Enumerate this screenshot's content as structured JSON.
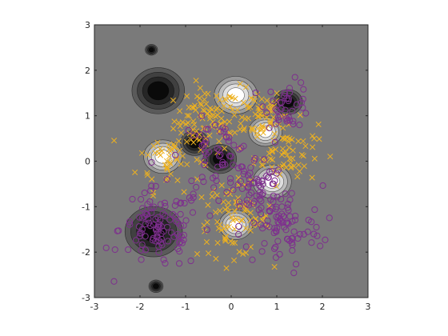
{
  "chart_data": {
    "type": "scatter",
    "title": "",
    "xlabel": "",
    "ylabel": "",
    "xlim": [
      -3,
      3
    ],
    "ylim": [
      -3,
      3
    ],
    "xticks": [
      "-3",
      "-2",
      "-1",
      "0",
      "1",
      "2",
      "3"
    ],
    "yticks": [
      "-3",
      "-2",
      "-1",
      "0",
      "1",
      "2",
      "3"
    ],
    "grid": false,
    "legend": "none",
    "background_color": "#7a7a7a",
    "contour_fill": "grayscale (black low, white high)",
    "series": [
      {
        "marker": "x",
        "color": "#edb120",
        "clusters": [
          {
            "center": [
              -0.55,
              0.9
            ],
            "spread": 0.35,
            "n": 90
          },
          {
            "center": [
              0.55,
              1.05
            ],
            "spread": 0.3,
            "n": 60
          },
          {
            "center": [
              -1.35,
              0.05
            ],
            "spread": 0.35,
            "n": 50
          },
          {
            "center": [
              1.2,
              0.2
            ],
            "spread": 0.35,
            "n": 70
          },
          {
            "center": [
              0.05,
              -1.3
            ],
            "spread": 0.4,
            "n": 80
          }
        ]
      },
      {
        "marker": "o",
        "color": "#7e2f8e",
        "clusters": [
          {
            "center": [
              -1.55,
              -1.5
            ],
            "spread": 0.45,
            "n": 110
          },
          {
            "center": [
              1.25,
              1.25
            ],
            "spread": 0.25,
            "n": 40
          },
          {
            "center": [
              -0.3,
              0.1
            ],
            "spread": 0.4,
            "n": 60
          },
          {
            "center": [
              1.1,
              -1.45
            ],
            "spread": 0.45,
            "n": 90
          },
          {
            "center": [
              0.55,
              -0.5
            ],
            "spread": 0.3,
            "n": 50
          }
        ]
      }
    ],
    "density_blobs": [
      {
        "center": [
          -1.6,
          1.55
        ],
        "level": "low",
        "radius": 0.55
      },
      {
        "center": [
          -1.7,
          -1.55
        ],
        "level": "low",
        "radius": 0.6
      },
      {
        "center": [
          -0.8,
          0.4
        ],
        "level": "low",
        "radius": 0.3
      },
      {
        "center": [
          -0.25,
          0.05
        ],
        "level": "low",
        "radius": 0.35
      },
      {
        "center": [
          1.25,
          1.3
        ],
        "level": "low",
        "radius": 0.3
      },
      {
        "center": [
          -1.75,
          2.45
        ],
        "level": "low",
        "radius": 0.13
      },
      {
        "center": [
          -1.65,
          -2.75
        ],
        "level": "low",
        "radius": 0.15
      },
      {
        "center": [
          0.1,
          1.45
        ],
        "level": "high",
        "radius": 0.45
      },
      {
        "center": [
          -1.5,
          0.1
        ],
        "level": "high",
        "radius": 0.4
      },
      {
        "center": [
          0.75,
          0.65
        ],
        "level": "high",
        "radius": 0.35
      },
      {
        "center": [
          0.9,
          -0.45
        ],
        "level": "high",
        "radius": 0.4
      },
      {
        "center": [
          0.1,
          -1.4
        ],
        "level": "high",
        "radius": 0.35
      }
    ]
  }
}
